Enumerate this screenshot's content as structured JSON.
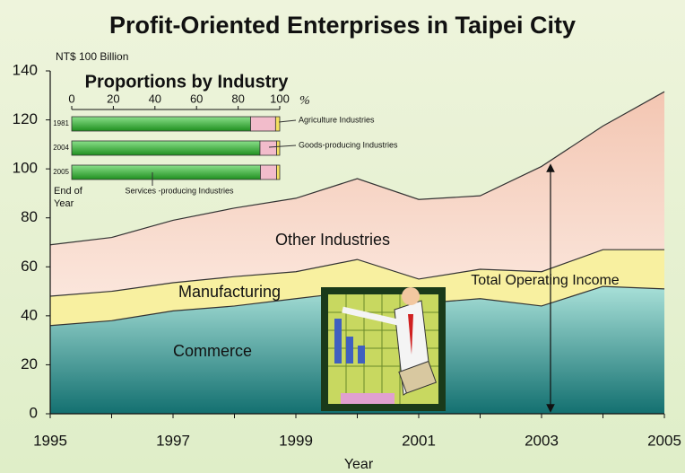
{
  "chart_data": [
    {
      "type": "stacked_area",
      "title": "Profit-Oriented Enterprises in Taipei City",
      "y_label": "NT$ 100 Billion",
      "x_label": "Year",
      "annotation": "Total Operating Income",
      "x": [
        1995,
        1996,
        1997,
        1998,
        1999,
        2000,
        2001,
        2002,
        2003,
        2004,
        2005
      ],
      "xlim": [
        1995,
        2005
      ],
      "xticks": [
        1995,
        1997,
        1999,
        2001,
        2003,
        2005
      ],
      "ylim": [
        0,
        140
      ],
      "yticks": [
        0,
        20,
        40,
        60,
        80,
        100,
        120,
        140
      ],
      "series": [
        {
          "name": "Commerce",
          "color": "#2a9a94",
          "values": [
            36,
            38,
            42,
            44,
            47,
            50,
            45,
            47,
            44,
            52,
            51
          ]
        },
        {
          "name": "Manufacturing",
          "color": "#f8f0a0",
          "values": [
            12,
            12,
            11.5,
            12,
            11,
            13,
            10,
            12,
            14,
            15,
            16
          ]
        },
        {
          "name": "Other Industries",
          "color": "#f6d4c2",
          "values": [
            21,
            22,
            25.5,
            28,
            30,
            33,
            32.5,
            30,
            43,
            50.5,
            64.5
          ]
        }
      ]
    },
    {
      "type": "stacked_hbar",
      "title": "Proportions by Industry",
      "y_label": "End of Year",
      "unit": "%",
      "categories": [
        "1981",
        "2004",
        "2005"
      ],
      "xlim": [
        0,
        100
      ],
      "xticks": [
        0,
        20,
        40,
        60,
        80,
        100
      ],
      "series": [
        {
          "name": "Services -producing Industries",
          "color": "#3aae3a",
          "values": [
            86,
            90.5,
            90.7
          ]
        },
        {
          "name": "Goods-producing Industries",
          "color": "#f2bccb",
          "values": [
            12,
            8,
            7.8
          ]
        },
        {
          "name": "Agriculture Industries",
          "color": "#f4e060",
          "values": [
            2,
            1.5,
            1.5
          ]
        }
      ]
    }
  ]
}
